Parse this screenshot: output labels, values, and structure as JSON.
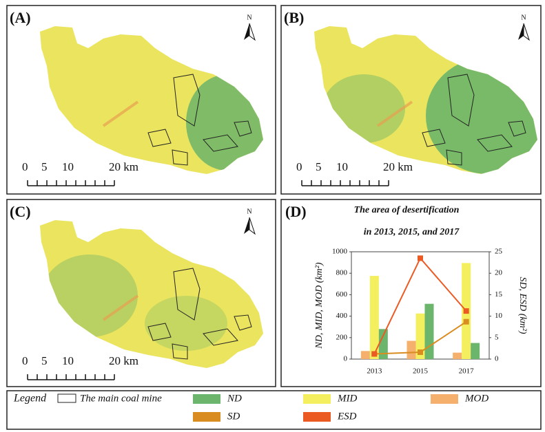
{
  "maps": [
    {
      "label": "(A)",
      "north": "N",
      "scale_labels": [
        "0",
        "5",
        "10",
        "20 km"
      ]
    },
    {
      "label": "(B)",
      "north": "N",
      "scale_labels": [
        "0",
        "5",
        "10",
        "20 km"
      ]
    },
    {
      "label": "(C)",
      "north": "N",
      "scale_labels": [
        "0",
        "5",
        "10",
        "20 km"
      ]
    }
  ],
  "panel_d_label": "(D)",
  "legend": {
    "title": "Legend",
    "coal_mine": "The main coal mine"
  },
  "chart_data": {
    "type": "bar",
    "title": "The area of desertification",
    "subtitle": "in 2013, 2015, and 2017",
    "categories": [
      "2013",
      "2015",
      "2017"
    ],
    "ylabel": "ND, MID, MOD (km²)",
    "y2label": "SD, ESD (km²)",
    "ylim": [
      0,
      1000
    ],
    "yticks": [
      0,
      200,
      400,
      600,
      800,
      1000
    ],
    "y2lim": [
      0,
      25
    ],
    "y2ticks": [
      0,
      5,
      10,
      15,
      20,
      25
    ],
    "series": [
      {
        "name": "MOD",
        "color": "#f4b06c",
        "values": [
          75,
          170,
          60
        ]
      },
      {
        "name": "MID",
        "color": "#f3ef5e",
        "values": [
          775,
          425,
          895
        ]
      },
      {
        "name": "ND",
        "color": "#6cb56c",
        "values": [
          280,
          515,
          150
        ]
      },
      {
        "name": "SD",
        "color": "#d98c20",
        "values": [
          1.2,
          1.6,
          8.7
        ],
        "axis": "y2",
        "type": "line"
      },
      {
        "name": "ESD",
        "color": "#ec5a24",
        "values": [
          1.2,
          23.5,
          11.2
        ],
        "axis": "y2",
        "type": "line"
      }
    ]
  }
}
